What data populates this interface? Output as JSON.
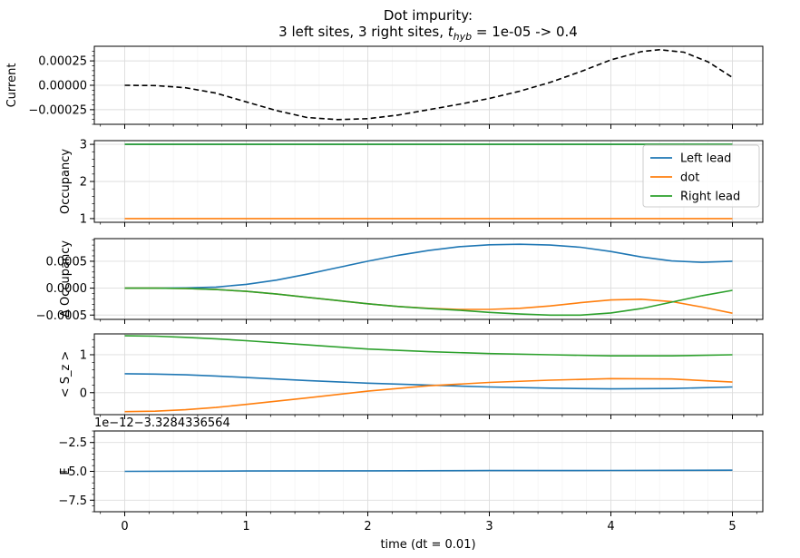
{
  "title_line1": "Dot impurity:",
  "title_line2_prefix": "3 left sites, 3 right sites, ",
  "title_line2_suffix": " = 1e-05 -> 0.4",
  "title_t": "t",
  "title_sub": "hyb",
  "xlabel": "time (dt = 0.01)",
  "colors": {
    "current": "#000000",
    "left_lead": "#1f77b4",
    "dot": "#ff7f0e",
    "right_lead": "#2ca02c",
    "grid": "#dddddd"
  },
  "chart_data": [
    {
      "type": "line",
      "ylabel": "Current",
      "xlim": [
        -0.25,
        5.25
      ],
      "ylim": [
        -0.0004,
        0.0004
      ],
      "yticks": [
        -0.00025,
        0.0,
        0.00025
      ],
      "ytick_labels": [
        "−0.00025",
        "0.00000",
        "0.00025"
      ],
      "series": [
        {
          "style": "dashed",
          "color": "#000000",
          "x": [
            0,
            0.25,
            0.5,
            0.75,
            1.0,
            1.25,
            1.5,
            1.75,
            2.0,
            2.25,
            2.5,
            2.75,
            3.0,
            3.25,
            3.5,
            3.75,
            4.0,
            4.25,
            4.4,
            4.6,
            4.8,
            5.0
          ],
          "y": [
            0.0,
            -3e-06,
            -2.5e-05,
            -8e-05,
            -0.00017,
            -0.00026,
            -0.00033,
            -0.000352,
            -0.000342,
            -0.000305,
            -0.00025,
            -0.000195,
            -0.000135,
            -6e-05,
            3e-05,
            0.00014,
            0.00026,
            0.000345,
            0.000365,
            0.00034,
            0.00024,
            8e-05
          ]
        }
      ]
    },
    {
      "type": "line",
      "ylabel": "Occupancy",
      "xlim": [
        -0.25,
        5.25
      ],
      "ylim": [
        0.9,
        3.1
      ],
      "yticks": [
        1,
        2,
        3
      ],
      "ytick_labels": [
        "1",
        "2",
        "3"
      ],
      "legend": "top-right",
      "series": [
        {
          "name": "Left lead",
          "color": "#1f77b4",
          "x": [
            0,
            5
          ],
          "y": [
            3.0,
            3.0
          ]
        },
        {
          "name": "dot",
          "color": "#ff7f0e",
          "x": [
            0,
            5
          ],
          "y": [
            1.0,
            1.0
          ]
        },
        {
          "name": "Right lead",
          "color": "#2ca02c",
          "x": [
            0,
            5
          ],
          "y": [
            3.0,
            3.0
          ]
        }
      ]
    },
    {
      "type": "line",
      "ylabel": "Δ Occupancy",
      "xlim": [
        -0.25,
        5.25
      ],
      "ylim": [
        -0.00058,
        0.00092
      ],
      "yticks": [
        -0.0005,
        0.0,
        0.0005
      ],
      "ytick_labels": [
        "−0.0005",
        "0.0000",
        "0.0005"
      ],
      "series": [
        {
          "color": "#1f77b4",
          "x": [
            0,
            0.25,
            0.5,
            0.75,
            1.0,
            1.25,
            1.5,
            1.75,
            2.0,
            2.25,
            2.5,
            2.75,
            3.0,
            3.25,
            3.5,
            3.75,
            4.0,
            4.25,
            4.5,
            4.75,
            5.0
          ],
          "y": [
            0.0,
            0.0,
            5e-06,
            2e-05,
            7e-05,
            0.00015,
            0.00026,
            0.00038,
            0.0005,
            0.00061,
            0.0007,
            0.00077,
            0.000805,
            0.000815,
            0.0008,
            0.00076,
            0.00068,
            0.00058,
            0.000505,
            0.00048,
            0.0005
          ]
        },
        {
          "color": "#ff7f0e",
          "x": [
            0,
            0.25,
            0.5,
            0.75,
            1.0,
            1.25,
            1.5,
            1.75,
            2.0,
            2.25,
            2.5,
            2.75,
            3.0,
            3.25,
            3.5,
            3.75,
            4.0,
            4.25,
            4.5,
            4.75,
            5.0
          ],
          "y": [
            0.0,
            0.0,
            -5e-06,
            -2.5e-05,
            -6e-05,
            -0.00011,
            -0.00017,
            -0.00023,
            -0.00029,
            -0.00034,
            -0.000375,
            -0.000395,
            -0.000395,
            -0.000375,
            -0.00033,
            -0.00027,
            -0.00022,
            -0.000205,
            -0.00025,
            -0.00035,
            -0.000465
          ]
        },
        {
          "color": "#2ca02c",
          "x": [
            0,
            0.25,
            0.5,
            0.75,
            1.0,
            1.25,
            1.5,
            1.75,
            2.0,
            2.25,
            2.5,
            2.75,
            3.0,
            3.25,
            3.5,
            3.75,
            4.0,
            4.25,
            4.5,
            4.75,
            5.0
          ],
          "y": [
            0.0,
            0.0,
            -5e-06,
            -2.5e-05,
            -6e-05,
            -0.00011,
            -0.00017,
            -0.00023,
            -0.00029,
            -0.00034,
            -0.00038,
            -0.00041,
            -0.00045,
            -0.00048,
            -0.0005,
            -0.0005,
            -0.00046,
            -0.00038,
            -0.00026,
            -0.00014,
            -4e-05
          ]
        }
      ]
    },
    {
      "type": "line",
      "ylabel": "< S_z >",
      "xlim": [
        -0.25,
        5.25
      ],
      "ylim": [
        -0.58,
        1.55
      ],
      "yticks": [
        0,
        1
      ],
      "ytick_labels": [
        "0",
        "1"
      ],
      "series": [
        {
          "color": "#2ca02c",
          "x": [
            0,
            0.25,
            0.5,
            0.75,
            1.0,
            1.5,
            2.0,
            2.5,
            3.0,
            3.5,
            4.0,
            4.5,
            5.0
          ],
          "y": [
            1.5,
            1.49,
            1.46,
            1.42,
            1.37,
            1.26,
            1.15,
            1.08,
            1.03,
            1.0,
            0.97,
            0.97,
            1.0
          ]
        },
        {
          "color": "#1f77b4",
          "x": [
            0,
            0.25,
            0.5,
            0.75,
            1.0,
            1.5,
            2.0,
            2.5,
            3.0,
            3.5,
            4.0,
            4.5,
            5.0
          ],
          "y": [
            0.5,
            0.49,
            0.47,
            0.44,
            0.4,
            0.32,
            0.25,
            0.2,
            0.15,
            0.12,
            0.1,
            0.11,
            0.15
          ]
        },
        {
          "color": "#ff7f0e",
          "x": [
            0,
            0.25,
            0.5,
            0.75,
            1.0,
            1.5,
            2.0,
            2.5,
            3.0,
            3.5,
            4.0,
            4.5,
            5.0
          ],
          "y": [
            -0.5,
            -0.49,
            -0.45,
            -0.39,
            -0.31,
            -0.14,
            0.04,
            0.18,
            0.27,
            0.33,
            0.37,
            0.36,
            0.28
          ]
        }
      ]
    },
    {
      "type": "line",
      "ylabel": "E",
      "offset_text": "1e−12−3.3284336564",
      "xlim": [
        -0.25,
        5.25
      ],
      "ylim": [
        -8.5,
        -1.5
      ],
      "yticks": [
        -7.5,
        -5.0,
        -2.5
      ],
      "ytick_labels": [
        "−7.5",
        "−5.0",
        "−2.5"
      ],
      "xticks": [
        0,
        1,
        2,
        3,
        4,
        5
      ],
      "xtick_labels": [
        "0",
        "1",
        "2",
        "3",
        "4",
        "5"
      ],
      "series": [
        {
          "color": "#1f77b4",
          "x": [
            0,
            1,
            2,
            3,
            4,
            5
          ],
          "y": [
            -5.0,
            -4.97,
            -4.95,
            -4.93,
            -4.92,
            -4.9
          ]
        }
      ]
    }
  ]
}
